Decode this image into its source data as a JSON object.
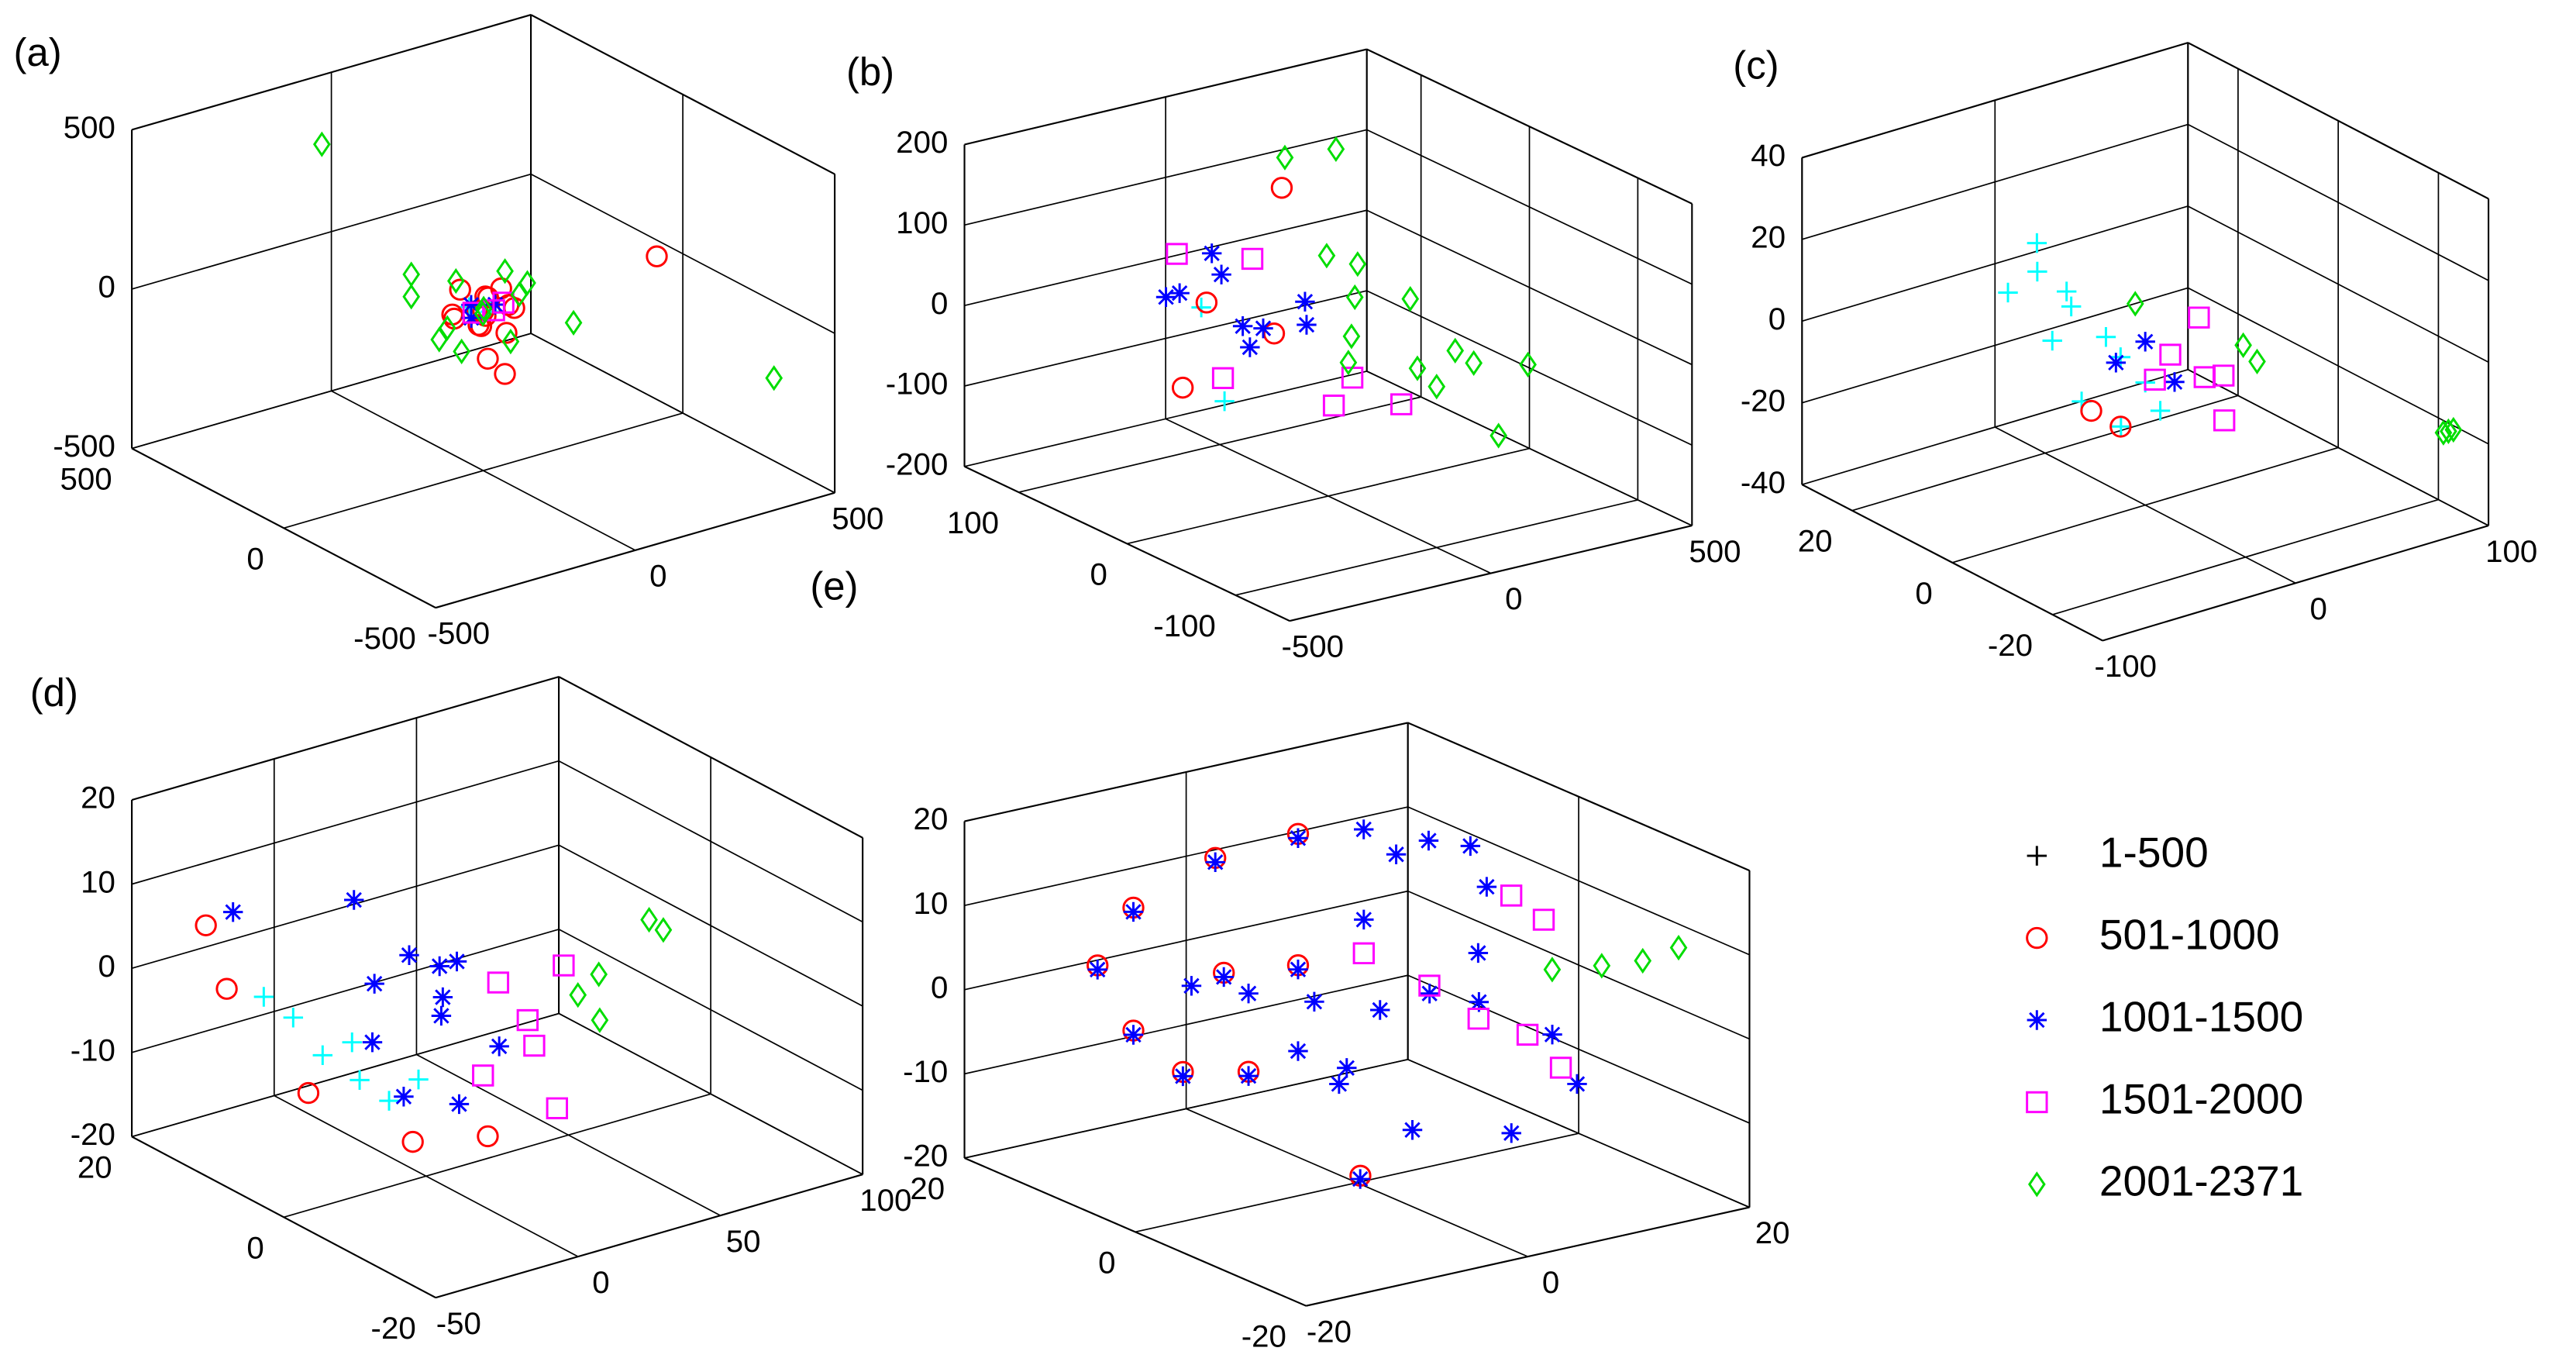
{
  "chart_data": [
    {
      "type": "scatter3d",
      "label": "(a)",
      "xlim": [
        -500,
        500
      ],
      "ylim": [
        -500,
        500
      ],
      "zlim": [
        -500,
        500
      ],
      "xticks": [
        -500,
        0,
        500
      ],
      "yticks": [
        -500,
        0,
        500
      ],
      "zticks": [
        -500,
        0,
        500
      ],
      "series": [
        {
          "marker": "+",
          "color": "#00ffff",
          "x": [
            10,
            -20
          ],
          "y": [
            -10,
            20
          ],
          "z": [
            0,
            10
          ]
        },
        {
          "marker": "o",
          "color": "#ff0000",
          "x": [
            0,
            40,
            -50,
            30,
            -40,
            60,
            -20,
            20,
            70,
            -70,
            10,
            -10,
            50,
            -50,
            450,
            -80,
            -60
          ],
          "y": [
            0,
            -30,
            30,
            60,
            -60,
            20,
            50,
            -50,
            -10,
            10,
            20,
            -20,
            50,
            -50,
            20,
            -120,
            -150
          ],
          "z": [
            0,
            20,
            -20,
            -40,
            30,
            40,
            50,
            -50,
            -10,
            10,
            -60,
            60,
            0,
            0,
            0,
            -60,
            -100
          ]
        },
        {
          "marker": "*",
          "color": "#0000ff",
          "x": [
            30,
            -30,
            0
          ],
          "y": [
            0,
            0,
            40
          ],
          "z": [
            10,
            -10,
            0
          ]
        },
        {
          "marker": "s",
          "color": "#ff00ff",
          "x": [
            50,
            -40,
            20
          ],
          "y": [
            30,
            -20,
            -40
          ],
          "z": [
            -30,
            20,
            40
          ]
        },
        {
          "marker": "d",
          "color": "#00dd00",
          "x": [
            90,
            -90,
            100,
            -100,
            0,
            0,
            60,
            -60,
            80,
            -80,
            -150,
            -150,
            150,
            500,
            -100
          ],
          "y": [
            0,
            0,
            60,
            -60,
            90,
            -90,
            80,
            -80,
            -40,
            40,
            40,
            40,
            -100,
            -300,
            400
          ],
          "z": [
            20,
            -20,
            60,
            -60,
            50,
            -50,
            -70,
            70,
            80,
            -80,
            150,
            80,
            -40,
            -240,
            360
          ]
        }
      ]
    },
    {
      "type": "scatter3d",
      "label": "(b)",
      "xlim": [
        -500,
        500
      ],
      "ylim": [
        -150,
        150
      ],
      "zlim": [
        -200,
        200
      ],
      "xticks": [
        -500,
        0,
        500
      ],
      "yticks": [
        -100,
        0,
        100
      ],
      "zticks": [
        -200,
        -100,
        0,
        100,
        200
      ],
      "series": [
        {
          "marker": "+",
          "color": "#00ffff",
          "x": [
            -100,
            -150
          ],
          "y": [
            80,
            40
          ],
          "z": [
            -5,
            -90
          ]
        },
        {
          "marker": "o",
          "color": "#ff0000",
          "x": [
            100,
            -200,
            -60,
            0
          ],
          "y": [
            80,
            60,
            90,
            50
          ],
          "z": [
            120,
            -80,
            -10,
            -30
          ]
        },
        {
          "marker": "*",
          "color": "#0000ff",
          "x": [
            -100,
            -50,
            0,
            50,
            -80,
            -20,
            30,
            -60,
            0
          ],
          "y": [
            100,
            80,
            60,
            40,
            120,
            100,
            90,
            50,
            20
          ],
          "z": [
            0,
            30,
            -30,
            10,
            -20,
            40,
            -50,
            -40,
            0
          ]
        },
        {
          "marker": "s",
          "color": "#ff00ff",
          "x": [
            -80,
            0,
            60,
            -40,
            20,
            -100
          ],
          "y": [
            110,
            70,
            0,
            -20,
            -60,
            60
          ],
          "z": [
            40,
            50,
            -60,
            -70,
            -50,
            -80
          ]
        },
        {
          "marker": "d",
          "color": "#00dd00",
          "x": [
            0,
            100,
            200,
            150,
            50,
            -50,
            100,
            200,
            120,
            60,
            0,
            100,
            50,
            100
          ],
          "y": [
            -100,
            -80,
            -60,
            -20,
            0,
            -40,
            -120,
            -110,
            20,
            -60,
            40,
            30,
            20,
            10
          ],
          "z": [
            0,
            20,
            -20,
            40,
            -40,
            30,
            -60,
            10,
            20,
            -10,
            195,
            200,
            80,
            70
          ]
        }
      ]
    },
    {
      "type": "scatter3d",
      "label": "(c)",
      "xlim": [
        -100,
        100
      ],
      "ylim": [
        -30,
        30
      ],
      "zlim": [
        -40,
        40
      ],
      "xticks": [
        -100,
        0,
        100
      ],
      "yticks": [
        -20,
        0,
        20
      ],
      "zticks": [
        -40,
        -20,
        0,
        20,
        40
      ],
      "series": [
        {
          "marker": "+",
          "color": "#00ffff",
          "x": [
            -30,
            -20,
            -10,
            0,
            -25,
            -15,
            -5,
            -20,
            -10,
            -30,
            0,
            -40
          ],
          "y": [
            10,
            8,
            4,
            0,
            12,
            9,
            3,
            5,
            1,
            7,
            -3,
            12
          ],
          "z": [
            15,
            10,
            0,
            -10,
            20,
            5,
            -5,
            -15,
            -20,
            0,
            -15,
            10
          ]
        },
        {
          "marker": "o",
          "color": "#ff0000",
          "x": [
            -15,
            -5
          ],
          "y": [
            5,
            3
          ],
          "z": [
            -18,
            -22
          ]
        },
        {
          "marker": "*",
          "color": "#0000ff",
          "x": [
            -10,
            0,
            10
          ],
          "y": [
            2,
            0,
            -2
          ],
          "z": [
            -5,
            0,
            -10
          ]
        },
        {
          "marker": "s",
          "color": "#ff00ff",
          "x": [
            0,
            10,
            20,
            5,
            15,
            25
          ],
          "y": [
            -5,
            -8,
            -3,
            0,
            -10,
            -6
          ],
          "z": [
            0,
            -5,
            5,
            -10,
            -15,
            -8
          ]
        },
        {
          "marker": "d",
          "color": "#00dd00",
          "x": [
            0,
            30,
            32,
            100,
            100,
            100
          ],
          "y": [
            2,
            -8,
            -10,
            -22,
            -23,
            -21
          ],
          "z": [
            8,
            0,
            -3,
            -22,
            -21,
            -23
          ]
        }
      ]
    },
    {
      "type": "scatter3d",
      "label": "(d)",
      "xlim": [
        -50,
        100
      ],
      "ylim": [
        -20,
        20
      ],
      "zlim": [
        -20,
        20
      ],
      "xticks": [
        -50,
        0,
        50,
        100
      ],
      "yticks": [
        -20,
        0,
        20
      ],
      "zticks": [
        -20,
        -10,
        0,
        10,
        20
      ],
      "series": [
        {
          "marker": "+",
          "color": "#00ffff",
          "x": [
            -20,
            -15,
            -10,
            -5,
            -25,
            -10,
            0
          ],
          "y": [
            10,
            8,
            5,
            3,
            12,
            6,
            1
          ],
          "z": [
            -4,
            -8,
            -10,
            -12,
            -2,
            -6,
            -9
          ]
        },
        {
          "marker": "o",
          "color": "#ff0000",
          "x": [
            -40,
            -30,
            -20,
            -10,
            -5
          ],
          "y": [
            14,
            15,
            8,
            -2,
            -10
          ],
          "z": [
            7,
            -2,
            -12,
            -14,
            -10
          ]
        },
        {
          "marker": "*",
          "color": "#0000ff",
          "x": [
            0,
            0,
            5,
            5,
            0,
            -5,
            -10,
            -10,
            -5,
            -10,
            -20,
            -35
          ],
          "y": [
            -2,
            -2.2,
            0.1,
            4.1,
            6.8,
            5.2,
            -0.8,
            -8.1,
            -11.5,
            -7.8,
            2.0,
            12.3
          ],
          "z": [
            0,
            2.3,
            4.4,
            3.8,
            -0.4,
            -6.1,
            -9.2,
            -6.6,
            1.4,
            10.2,
            13.8,
            8.9
          ]
        },
        {
          "marker": "s",
          "color": "#ff00ff",
          "x": [
            20,
            25,
            30,
            20,
            30,
            35
          ],
          "y": [
            -2,
            -4,
            -3,
            0,
            -6,
            -5
          ],
          "z": [
            2,
            -2,
            -6,
            -10,
            -12,
            4
          ]
        },
        {
          "marker": "d",
          "color": "#00dd00",
          "x": [
            40,
            45,
            50,
            65,
            70
          ],
          "y": [
            -5,
            -6,
            -4,
            -5,
            -5
          ],
          "z": [
            0,
            -3,
            1,
            6.5,
            4.8
          ]
        }
      ]
    },
    {
      "type": "scatter3d",
      "label": "(e)",
      "xlim": [
        -20,
        20
      ],
      "ylim": [
        -20,
        20
      ],
      "zlim": [
        -20,
        20
      ],
      "xticks": [
        -20,
        0,
        20
      ],
      "yticks": [
        -20,
        0,
        20
      ],
      "zticks": [
        -20,
        -10,
        0,
        10,
        20
      ],
      "series": [
        {
          "marker": "+",
          "color": "#00ffff",
          "x": [],
          "y": [],
          "z": []
        },
        {
          "marker": "o",
          "color": "#ff0000",
          "x": [
            0,
            0,
            -8,
            -10,
            -10,
            -10,
            -5,
            0,
            0,
            -5
          ],
          "y": [
            -0.4,
            12.7,
            10,
            13.2,
            17.4,
            13.2,
            10.1,
            6.9,
            6.9,
            9.1
          ],
          "z": [
            -19,
            -12.4,
            -8.9,
            -4.8,
            1.1,
            9.8,
            15.6,
            18.4,
            2.8,
            2.4
          ]
        },
        {
          "marker": "*",
          "color": "#0000ff",
          "x": [
            0,
            0,
            0,
            0,
            -8,
            -10,
            -10,
            -10,
            -5,
            0,
            5,
            5,
            0,
            0,
            -5,
            -10,
            0,
            0,
            0,
            0,
            5,
            5,
            10,
            5,
            0,
            5,
            10,
            15,
            15,
            10
          ],
          "y": [
            -0.38,
            2.1,
            6.9,
            12.7,
            10,
            13.2,
            17.4,
            13.2,
            10.1,
            6.9,
            5.7,
            1.9,
            -0.8,
            6.9,
            9.1,
            6.4,
            12.7,
            5,
            -2.7,
            -8.5,
            -7.7,
            -8.7,
            -0.3,
            -1.9,
            1.2,
            0,
            -5.1,
            -6.3,
            -3.4,
            -1.3
          ],
          "z": [
            -19.4,
            -9.2,
            -7.4,
            -12.9,
            -9.4,
            -5.3,
            0.6,
            9.3,
            15.1,
            17.9,
            18.0,
            16.7,
            11.6,
            2.3,
            1.9,
            3.5,
            -3.1,
            -0.7,
            1.7,
            6.2,
            9.2,
            17.5,
            17.2,
            20,
            -6.9,
            -15.2,
            -14.8,
            -9.9,
            -5.3,
            -0.9
          ]
        },
        {
          "marker": "s",
          "color": "#ff00ff",
          "x": [
            10,
            10,
            15,
            15,
            15,
            15,
            0
          ],
          "y": [
            4.5,
            -1.25,
            -0.5,
            -2.4,
            1.4,
            -4.4,
            -0.8
          ],
          "z": [
            -1.5,
            -2.9,
            -6.6,
            7.9,
            9.1,
            -8.8,
            7.6
          ]
        },
        {
          "marker": "d",
          "color": "#00dd00",
          "x": [
            20,
            20,
            20,
            20
          ],
          "y": [
            3.1,
            -2.7,
            -7.5,
            -11.7
          ],
          "z": [
            -1.9,
            1.1,
            3.8,
            7.2
          ]
        }
      ]
    }
  ],
  "legend": [
    {
      "name": "1-500",
      "marker": "+",
      "color": "#000000"
    },
    {
      "name": "501-1000",
      "marker": "o",
      "color": "#ff0000"
    },
    {
      "name": "1001-1500",
      "marker": "*",
      "color": "#0000ff"
    },
    {
      "name": "1501-2000",
      "marker": "s",
      "color": "#ff00ff"
    },
    {
      "name": "2001-2371",
      "marker": "d",
      "color": "#00dd00"
    }
  ]
}
